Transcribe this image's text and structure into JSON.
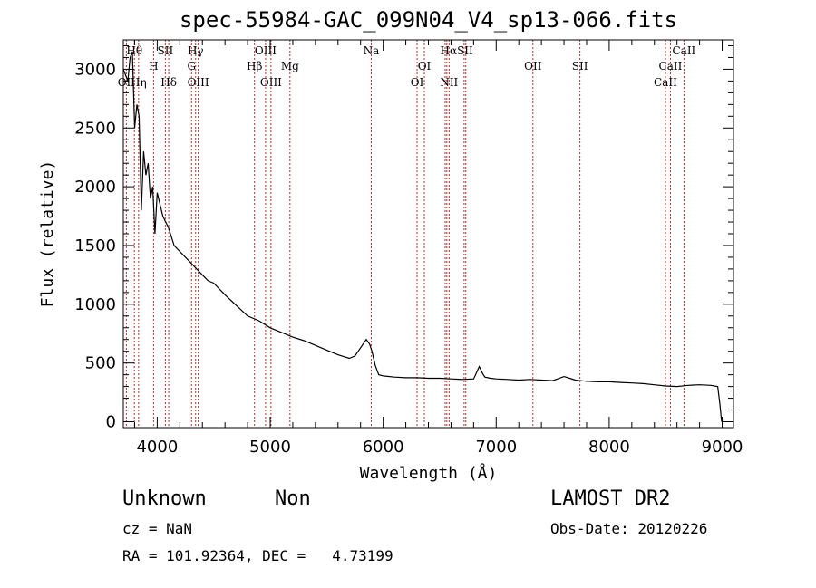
{
  "chart_data": {
    "type": "line",
    "title": "spec-55984-GAC_099N04_V4_sp13-066.fits",
    "xlabel": "Wavelength (Å)",
    "ylabel": "Flux (relative)",
    "xlim": [
      3700,
      9100
    ],
    "ylim": [
      -50,
      3250
    ],
    "xticks": [
      4000,
      5000,
      6000,
      7000,
      8000,
      9000
    ],
    "yticks": [
      0,
      500,
      1000,
      1500,
      2000,
      2500,
      3000
    ],
    "spectrum": {
      "x": [
        3700,
        3720,
        3740,
        3760,
        3780,
        3800,
        3820,
        3840,
        3860,
        3880,
        3900,
        3920,
        3940,
        3960,
        3980,
        4000,
        4050,
        4100,
        4150,
        4200,
        4250,
        4300,
        4350,
        4400,
        4450,
        4500,
        4600,
        4700,
        4800,
        4900,
        5000,
        5100,
        5200,
        5300,
        5400,
        5500,
        5600,
        5700,
        5750,
        5800,
        5850,
        5880,
        5900,
        5930,
        5960,
        6000,
        6100,
        6200,
        6300,
        6400,
        6500,
        6600,
        6700,
        6800,
        6850,
        6880,
        6900,
        6950,
        7000,
        7100,
        7200,
        7300,
        7400,
        7500,
        7600,
        7650,
        7700,
        7800,
        7900,
        8000,
        8100,
        8200,
        8300,
        8400,
        8500,
        8600,
        8700,
        8800,
        8900,
        8960,
        8980,
        8995
      ],
      "y": [
        3000,
        2950,
        2900,
        3100,
        3150,
        2500,
        2700,
        2600,
        1800,
        2300,
        2100,
        2200,
        1900,
        2000,
        1600,
        1950,
        1750,
        1650,
        1500,
        1450,
        1400,
        1350,
        1300,
        1250,
        1200,
        1180,
        1080,
        990,
        900,
        860,
        800,
        760,
        720,
        690,
        650,
        610,
        570,
        540,
        560,
        630,
        700,
        660,
        600,
        480,
        400,
        390,
        380,
        375,
        375,
        370,
        370,
        365,
        360,
        365,
        470,
        410,
        380,
        370,
        365,
        360,
        355,
        360,
        355,
        350,
        385,
        370,
        355,
        345,
        340,
        340,
        335,
        330,
        325,
        315,
        305,
        300,
        310,
        315,
        310,
        300,
        150,
        0
      ]
    },
    "lines": [
      {
        "label": "OII",
        "x": 3727
      },
      {
        "label": "Hθ",
        "x": 3798
      },
      {
        "label": "Hη",
        "x": 3835
      },
      {
        "label": "H",
        "x": 3968
      },
      {
        "label": "SII",
        "x": 4072
      },
      {
        "label": "Hδ",
        "x": 4102
      },
      {
        "label": "G",
        "x": 4304
      },
      {
        "label": "Hγ",
        "x": 4340
      },
      {
        "label": "OIII",
        "x": 4363
      },
      {
        "label": "Hβ",
        "x": 4861
      },
      {
        "label": "OIII",
        "x": 4959
      },
      {
        "label": "OIII",
        "x": 5007
      },
      {
        "label": "Mg",
        "x": 5175
      },
      {
        "label": "Na",
        "x": 5894
      },
      {
        "label": "OI",
        "x": 6300
      },
      {
        "label": "OI",
        "x": 6364
      },
      {
        "label": "NII",
        "x": 6548
      },
      {
        "label": "Hα",
        "x": 6563
      },
      {
        "label": "NII",
        "x": 6583
      },
      {
        "label": "SII",
        "x": 6716
      },
      {
        "label": "SII",
        "x": 6731
      },
      {
        "label": "OII",
        "x": 7325
      },
      {
        "label": "SII",
        "x": 7741
      },
      {
        "label": "CaII",
        "x": 8498
      },
      {
        "label": "CaII",
        "x": 8542
      },
      {
        "label": "CaII",
        "x": 8662
      }
    ],
    "line_labels": [
      {
        "text": "OII",
        "x": 3727,
        "row": 3
      },
      {
        "text": "Hθ",
        "x": 3798,
        "row": 0
      },
      {
        "text": "Hη",
        "x": 3835,
        "row": 3
      },
      {
        "text": "H",
        "x": 3968,
        "row": 2
      },
      {
        "text": "SII",
        "x": 4072,
        "row": 0
      },
      {
        "text": "Hδ",
        "x": 4102,
        "row": 3
      },
      {
        "text": "Hγ",
        "x": 4340,
        "row": 0
      },
      {
        "text": "G",
        "x": 4304,
        "row": 2
      },
      {
        "text": "OIII",
        "x": 4363,
        "row": 3
      },
      {
        "text": "OIII",
        "x": 4959,
        "row": 0
      },
      {
        "text": "Hβ",
        "x": 4861,
        "row": 2
      },
      {
        "text": "OIII",
        "x": 5007,
        "row": 3
      },
      {
        "text": "Mg",
        "x": 5175,
        "row": 2
      },
      {
        "text": "Na",
        "x": 5894,
        "row": 0
      },
      {
        "text": "OI",
        "x": 6364,
        "row": 2
      },
      {
        "text": "OI",
        "x": 6300,
        "row": 3
      },
      {
        "text": "HαSII",
        "x": 6650,
        "row": 0
      },
      {
        "text": "NII",
        "x": 6583,
        "row": 3
      },
      {
        "text": "OII",
        "x": 7325,
        "row": 2
      },
      {
        "text": "SII",
        "x": 7741,
        "row": 2
      },
      {
        "text": "CaII",
        "x": 8662,
        "row": 0
      },
      {
        "text": "CaII",
        "x": 8542,
        "row": 2
      },
      {
        "text": "CaII",
        "x": 8498,
        "row": 3
      }
    ],
    "line_color": "#b03030",
    "grid": false
  },
  "info": {
    "class": "Unknown",
    "subclass": "Non",
    "cz": "cz = NaN",
    "radec": "RA = 101.92364, DEC =   4.73199",
    "survey": "LAMOST DR2",
    "obsdate": "Obs-Date: 20120226"
  }
}
